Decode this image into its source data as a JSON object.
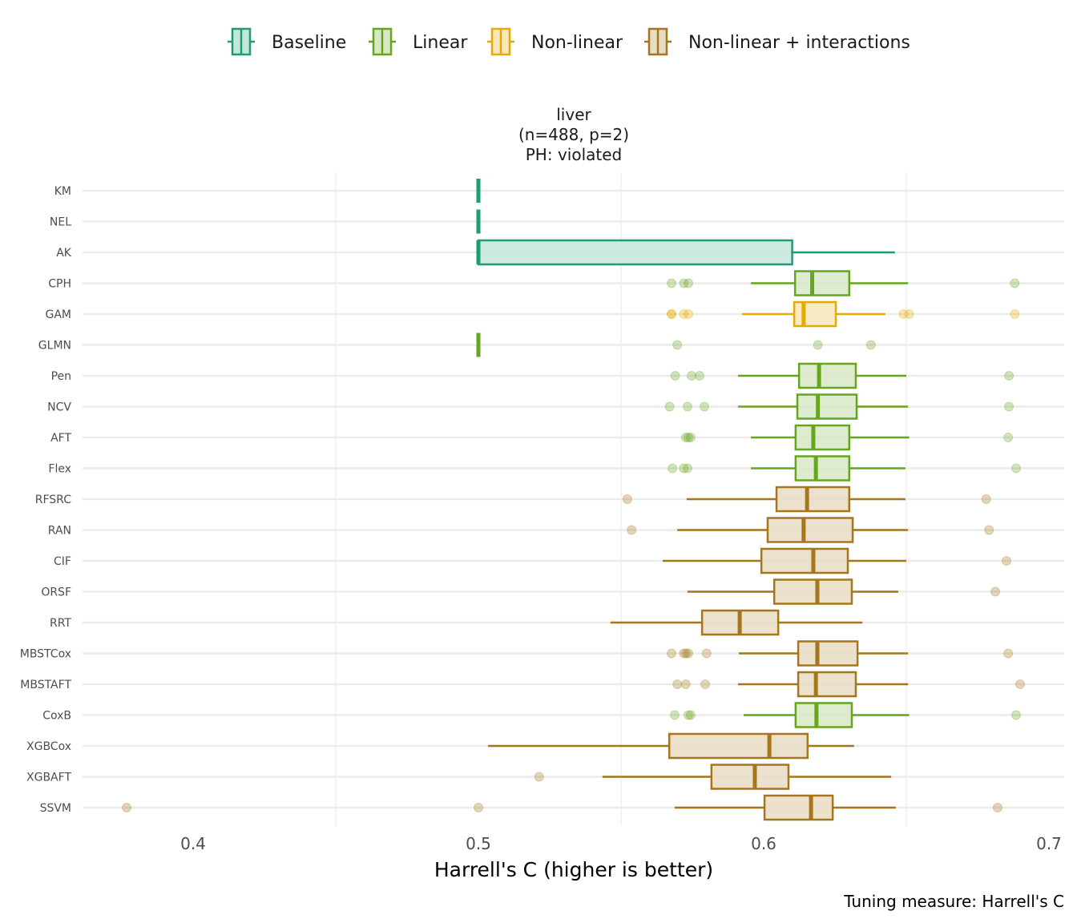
{
  "chart_data": {
    "type": "boxplot-horizontal",
    "facet_title": [
      "liver",
      "(n=488, p=2)",
      "PH: violated"
    ],
    "xlabel": "Harrell's C (higher is better)",
    "caption": "Tuning measure: Harrell's C",
    "xlim": [
      0.365,
      0.705
    ],
    "xticks": [
      0.4,
      0.5,
      0.6,
      0.7
    ],
    "xtick_labels": [
      "0.4",
      "0.5",
      "0.6",
      "0.7"
    ],
    "minor_gridlines": [
      0.45,
      0.55,
      0.65
    ],
    "grid": true,
    "legend_position": "top",
    "legend": [
      {
        "name": "Baseline",
        "stroke": "#1b9e77",
        "fill": "#c4e6db"
      },
      {
        "name": "Linear",
        "stroke": "#66a61e",
        "fill": "#d8e8c6"
      },
      {
        "name": "Non-linear",
        "stroke": "#e6ab02",
        "fill": "#f8e8bb"
      },
      {
        "name": "Non-linear + interactions",
        "stroke": "#a6761d",
        "fill": "#e8dcc4"
      }
    ],
    "models": [
      {
        "name": "KM",
        "group": "Baseline",
        "lo": 0.5,
        "q1": 0.5,
        "med": 0.5,
        "q3": 0.5,
        "hi": 0.5,
        "outliers": []
      },
      {
        "name": "NEL",
        "group": "Baseline",
        "lo": 0.5,
        "q1": 0.5,
        "med": 0.5,
        "q3": 0.5,
        "hi": 0.5,
        "outliers": []
      },
      {
        "name": "AK",
        "group": "Baseline",
        "lo": 0.5,
        "q1": 0.5,
        "med": 0.5,
        "q3": 0.61,
        "hi": 0.646,
        "outliers": []
      },
      {
        "name": "CPH",
        "group": "Linear",
        "lo": 0.5955,
        "q1": 0.611,
        "med": 0.617,
        "q3": 0.63,
        "hi": 0.6506,
        "outliers": [
          0.5677,
          0.572,
          0.5736,
          0.688
        ]
      },
      {
        "name": "GAM",
        "group": "Non-linear",
        "lo": 0.5924,
        "q1": 0.6107,
        "med": 0.614,
        "q3": 0.6253,
        "hi": 0.6427,
        "outliers": [
          0.5677,
          0.5677,
          0.572,
          0.5736,
          0.649,
          0.651,
          0.688
        ]
      },
      {
        "name": "GLMN",
        "group": "Linear",
        "lo": 0.5,
        "q1": 0.5,
        "med": 0.5,
        "q3": 0.5,
        "hi": 0.5,
        "outliers": [
          0.5697,
          0.619,
          0.6376
        ]
      },
      {
        "name": "Pen",
        "group": "Linear",
        "lo": 0.591,
        "q1": 0.6124,
        "med": 0.6194,
        "q3": 0.6323,
        "hi": 0.65,
        "outliers": [
          0.569,
          0.5747,
          0.5775,
          0.686
        ]
      },
      {
        "name": "NCV",
        "group": "Linear",
        "lo": 0.591,
        "q1": 0.6118,
        "med": 0.619,
        "q3": 0.6326,
        "hi": 0.6506,
        "outliers": [
          0.567,
          0.5733,
          0.5792,
          0.686
        ]
      },
      {
        "name": "AFT",
        "group": "Linear",
        "lo": 0.5955,
        "q1": 0.6112,
        "med": 0.6174,
        "q3": 0.63,
        "hi": 0.651,
        "outliers": [
          0.5727,
          0.5736,
          0.5744,
          0.6857
        ]
      },
      {
        "name": "Flex",
        "group": "Linear",
        "lo": 0.5955,
        "q1": 0.6112,
        "med": 0.6183,
        "q3": 0.63,
        "hi": 0.6497,
        "outliers": [
          0.568,
          0.572,
          0.5733,
          0.6885
        ]
      },
      {
        "name": "RFSRC",
        "group": "Non-linear + interactions",
        "lo": 0.573,
        "q1": 0.6045,
        "med": 0.6152,
        "q3": 0.63,
        "hi": 0.6497,
        "outliers": [
          0.5522,
          0.678
        ]
      },
      {
        "name": "RAN",
        "group": "Non-linear + interactions",
        "lo": 0.5697,
        "q1": 0.6014,
        "med": 0.614,
        "q3": 0.6312,
        "hi": 0.6506,
        "outliers": [
          0.5537,
          0.679
        ]
      },
      {
        "name": "CIF",
        "group": "Non-linear + interactions",
        "lo": 0.5646,
        "q1": 0.5992,
        "med": 0.6174,
        "q3": 0.6295,
        "hi": 0.65,
        "outliers": [
          0.6851
        ]
      },
      {
        "name": "ORSF",
        "group": "Non-linear + interactions",
        "lo": 0.5733,
        "q1": 0.6037,
        "med": 0.6188,
        "q3": 0.6309,
        "hi": 0.6472,
        "outliers": [
          0.6812
        ]
      },
      {
        "name": "RRT",
        "group": "Non-linear + interactions",
        "lo": 0.5463,
        "q1": 0.5784,
        "med": 0.5916,
        "q3": 0.6051,
        "hi": 0.6346,
        "outliers": []
      },
      {
        "name": "MBSTCox",
        "group": "Non-linear + interactions",
        "lo": 0.5913,
        "q1": 0.6121,
        "med": 0.6188,
        "q3": 0.6329,
        "hi": 0.6506,
        "outliers": [
          0.5677,
          0.572,
          0.5728,
          0.5736,
          0.58,
          0.6857
        ]
      },
      {
        "name": "MBSTAFT",
        "group": "Non-linear + interactions",
        "lo": 0.591,
        "q1": 0.6121,
        "med": 0.6183,
        "q3": 0.6323,
        "hi": 0.6506,
        "outliers": [
          0.5697,
          0.5727,
          0.5795,
          0.6899
        ]
      },
      {
        "name": "CoxB",
        "group": "Linear",
        "lo": 0.593,
        "q1": 0.6112,
        "med": 0.6185,
        "q3": 0.6309,
        "hi": 0.651,
        "outliers": [
          0.5688,
          0.5736,
          0.5744,
          0.6885
        ]
      },
      {
        "name": "XGBCox",
        "group": "Non-linear + interactions",
        "lo": 0.5034,
        "q1": 0.5669,
        "med": 0.602,
        "q3": 0.6154,
        "hi": 0.6317,
        "outliers": []
      },
      {
        "name": "XGBAFT",
        "group": "Non-linear + interactions",
        "lo": 0.5435,
        "q1": 0.5817,
        "med": 0.5969,
        "q3": 0.6087,
        "hi": 0.6447,
        "outliers": [
          0.5213
        ]
      },
      {
        "name": "SSVM",
        "group": "Non-linear + interactions",
        "lo": 0.5688,
        "q1": 0.6003,
        "med": 0.6166,
        "q3": 0.6242,
        "hi": 0.6463,
        "outliers": [
          0.3767,
          0.5,
          0.682
        ]
      }
    ]
  }
}
